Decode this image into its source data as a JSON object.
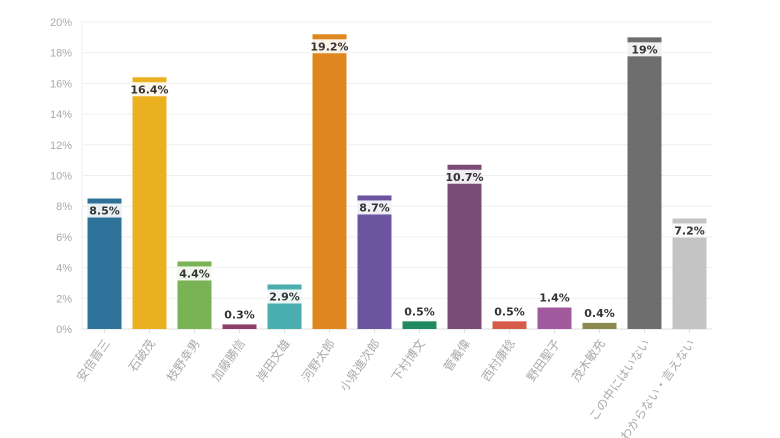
{
  "chart_data": {
    "type": "bar",
    "title": "",
    "xlabel": "",
    "ylabel": "",
    "ylim": [
      0,
      20
    ],
    "yticks": [
      "0%",
      "2%",
      "4%",
      "6%",
      "8%",
      "10%",
      "12%",
      "14%",
      "16%",
      "18%",
      "20%"
    ],
    "grid": true,
    "categories": [
      "安倍晋三",
      "石破茂",
      "枝野幸男",
      "加藤勝信",
      "岸田文雄",
      "河野太郎",
      "小泉進次郎",
      "下村博文",
      "菅義偉",
      "西村康稔",
      "野田聖子",
      "茂木敏充",
      "この中にはいない",
      "わからない・言えない"
    ],
    "values": [
      8.5,
      16.4,
      4.4,
      0.3,
      2.9,
      19.2,
      8.7,
      0.5,
      10.7,
      0.5,
      1.4,
      0.4,
      19,
      7.2
    ],
    "labels": [
      "8.5%",
      "16.4%",
      "4.4%",
      "0.3%",
      "2.9%",
      "19.2%",
      "8.7%",
      "0.5%",
      "10.7%",
      "0.5%",
      "1.4%",
      "0.4%",
      "19%",
      "7.2%"
    ],
    "colors": [
      "#2e7199",
      "#eab020",
      "#7ab356",
      "#8d3f6a",
      "#4aaeae",
      "#e0861e",
      "#6c54a0",
      "#1f8a5e",
      "#7b4b78",
      "#d45c48",
      "#a25a9e",
      "#8c8a50",
      "#6e6e6e",
      "#c4c4c4"
    ]
  }
}
